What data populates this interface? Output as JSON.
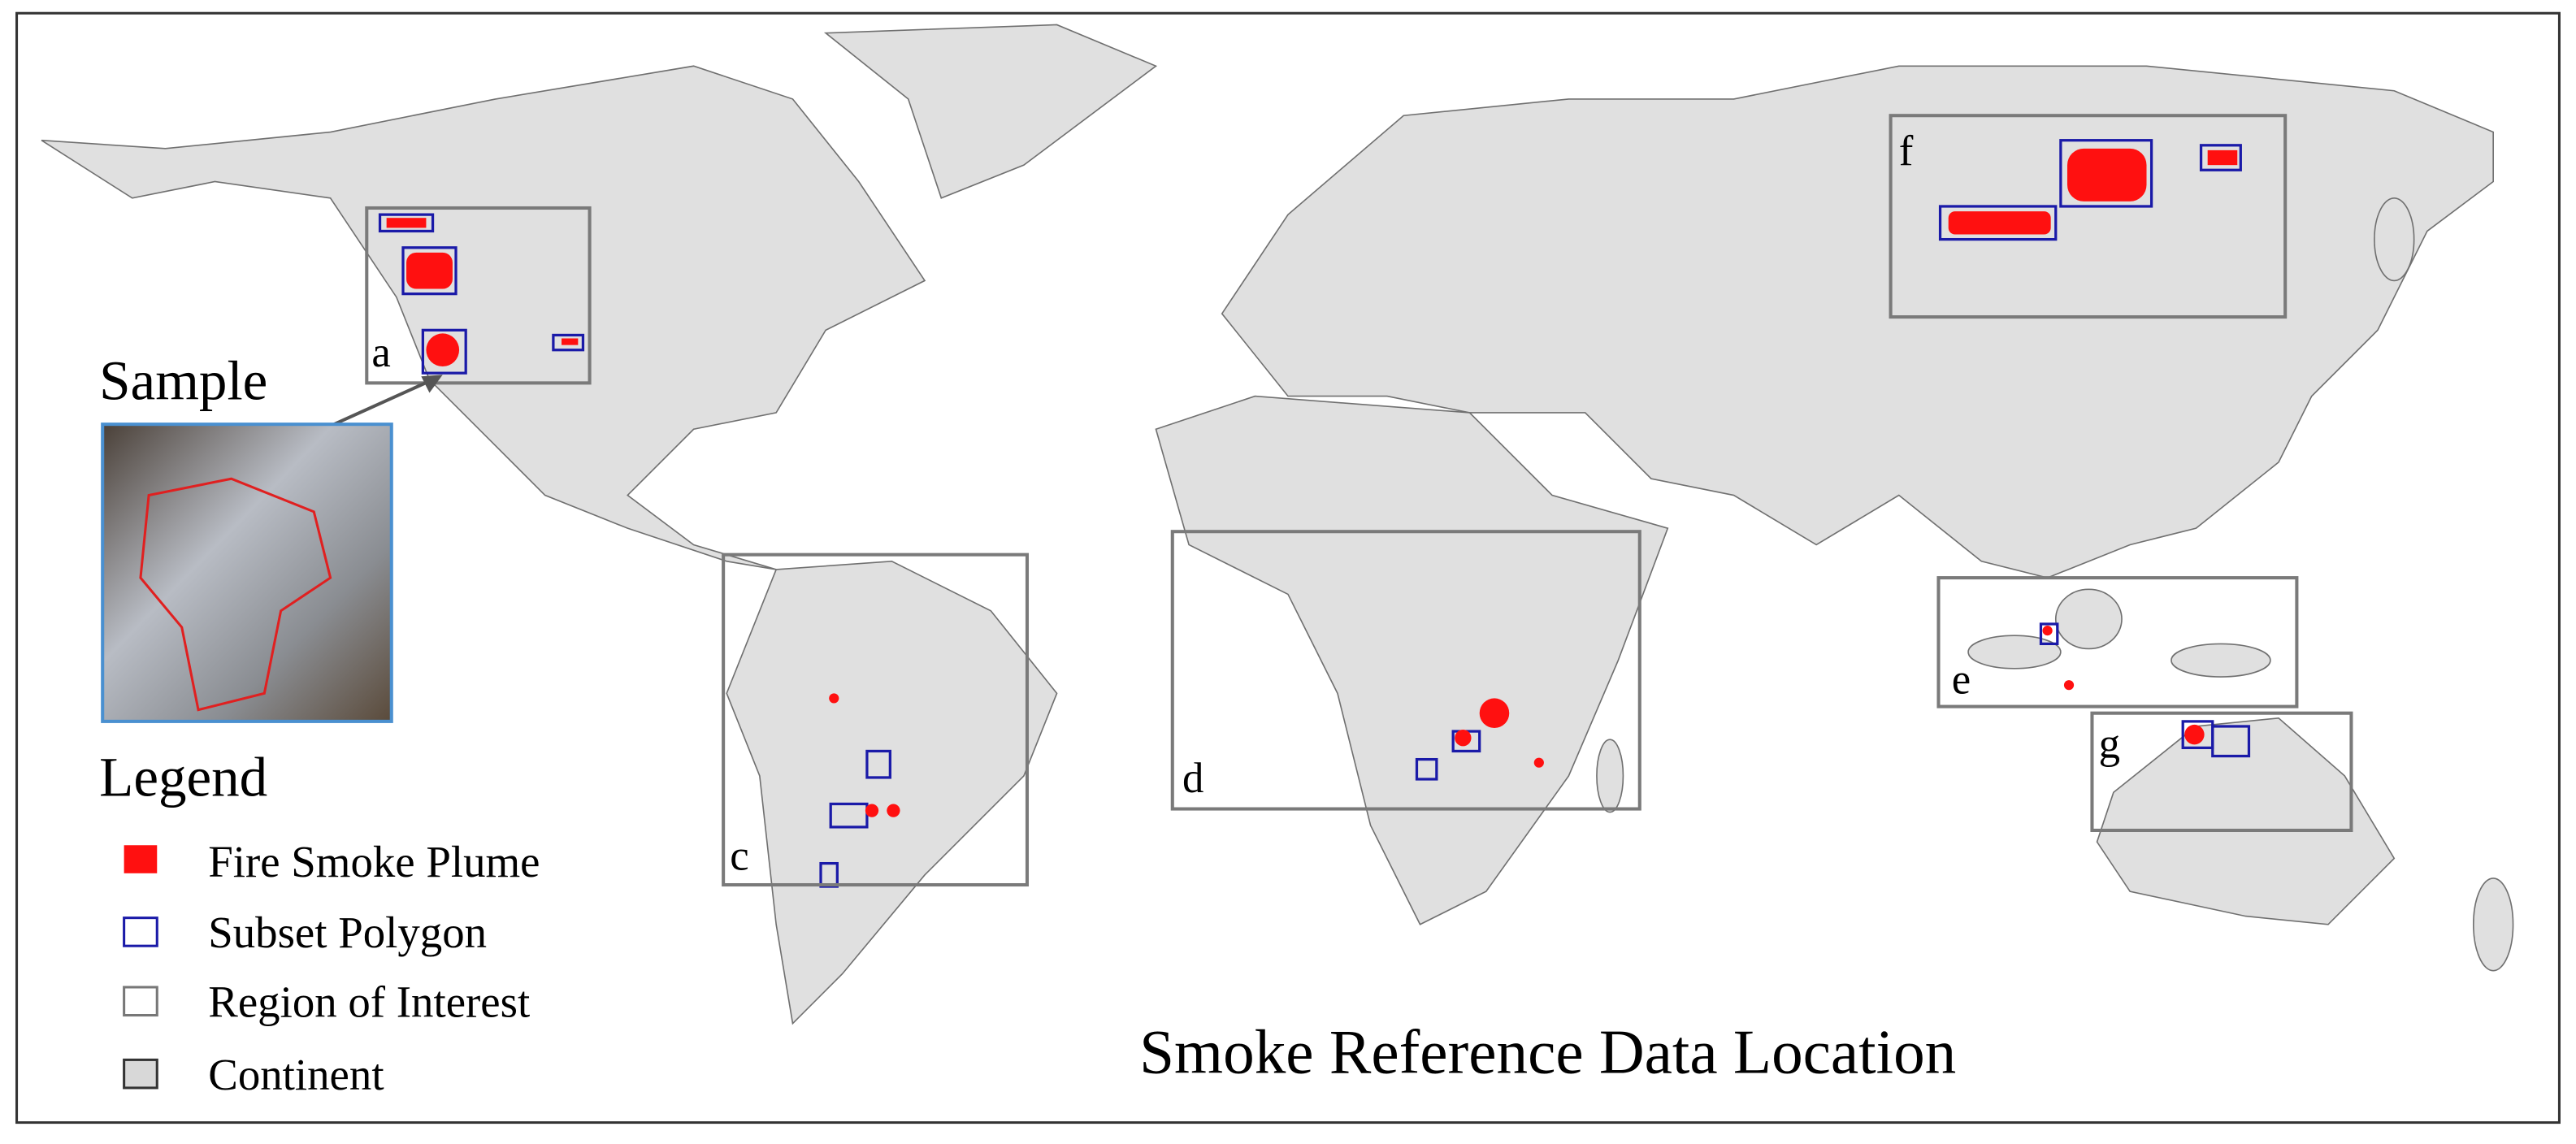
{
  "title": "Smoke Reference Data Location",
  "sample": {
    "label": "Sample"
  },
  "regions": [
    {
      "label": "a"
    },
    {
      "label": "c"
    },
    {
      "label": "d"
    },
    {
      "label": "e"
    },
    {
      "label": "f"
    },
    {
      "label": "g"
    }
  ],
  "legend": {
    "title": "Legend",
    "items": [
      "Fire Smoke Plume",
      "Subset Polygon",
      "Region of Interest",
      "Continent"
    ]
  }
}
